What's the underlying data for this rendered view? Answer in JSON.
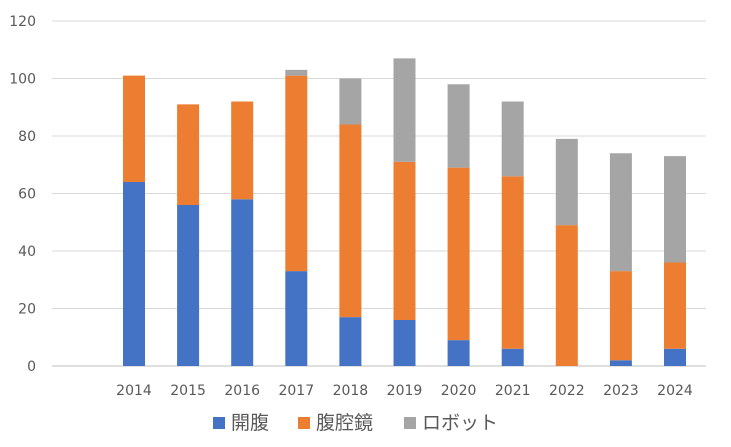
{
  "chart_data": {
    "type": "bar",
    "stacked": true,
    "title": "",
    "xlabel": "",
    "ylabel": "",
    "categories": [
      "2014",
      "2015",
      "2016",
      "2017",
      "2018",
      "2019",
      "2020",
      "2021",
      "2022",
      "2023",
      "2024"
    ],
    "series": [
      {
        "name": "開腹",
        "color": "#4472c4",
        "values": [
          64,
          56,
          58,
          33,
          17,
          16,
          9,
          6,
          0,
          2,
          6
        ]
      },
      {
        "name": "腹腔鏡",
        "color": "#ed7d31",
        "values": [
          37,
          35,
          34,
          68,
          67,
          55,
          60,
          60,
          49,
          31,
          30
        ]
      },
      {
        "name": "ロボット",
        "color": "#a5a5a5",
        "values": [
          0,
          0,
          0,
          2,
          16,
          36,
          29,
          26,
          30,
          41,
          37
        ]
      }
    ],
    "ylim": [
      0,
      120
    ],
    "yticks": [
      0,
      20,
      40,
      60,
      80,
      100,
      120
    ],
    "grid": true,
    "legend_position": "bottom"
  }
}
